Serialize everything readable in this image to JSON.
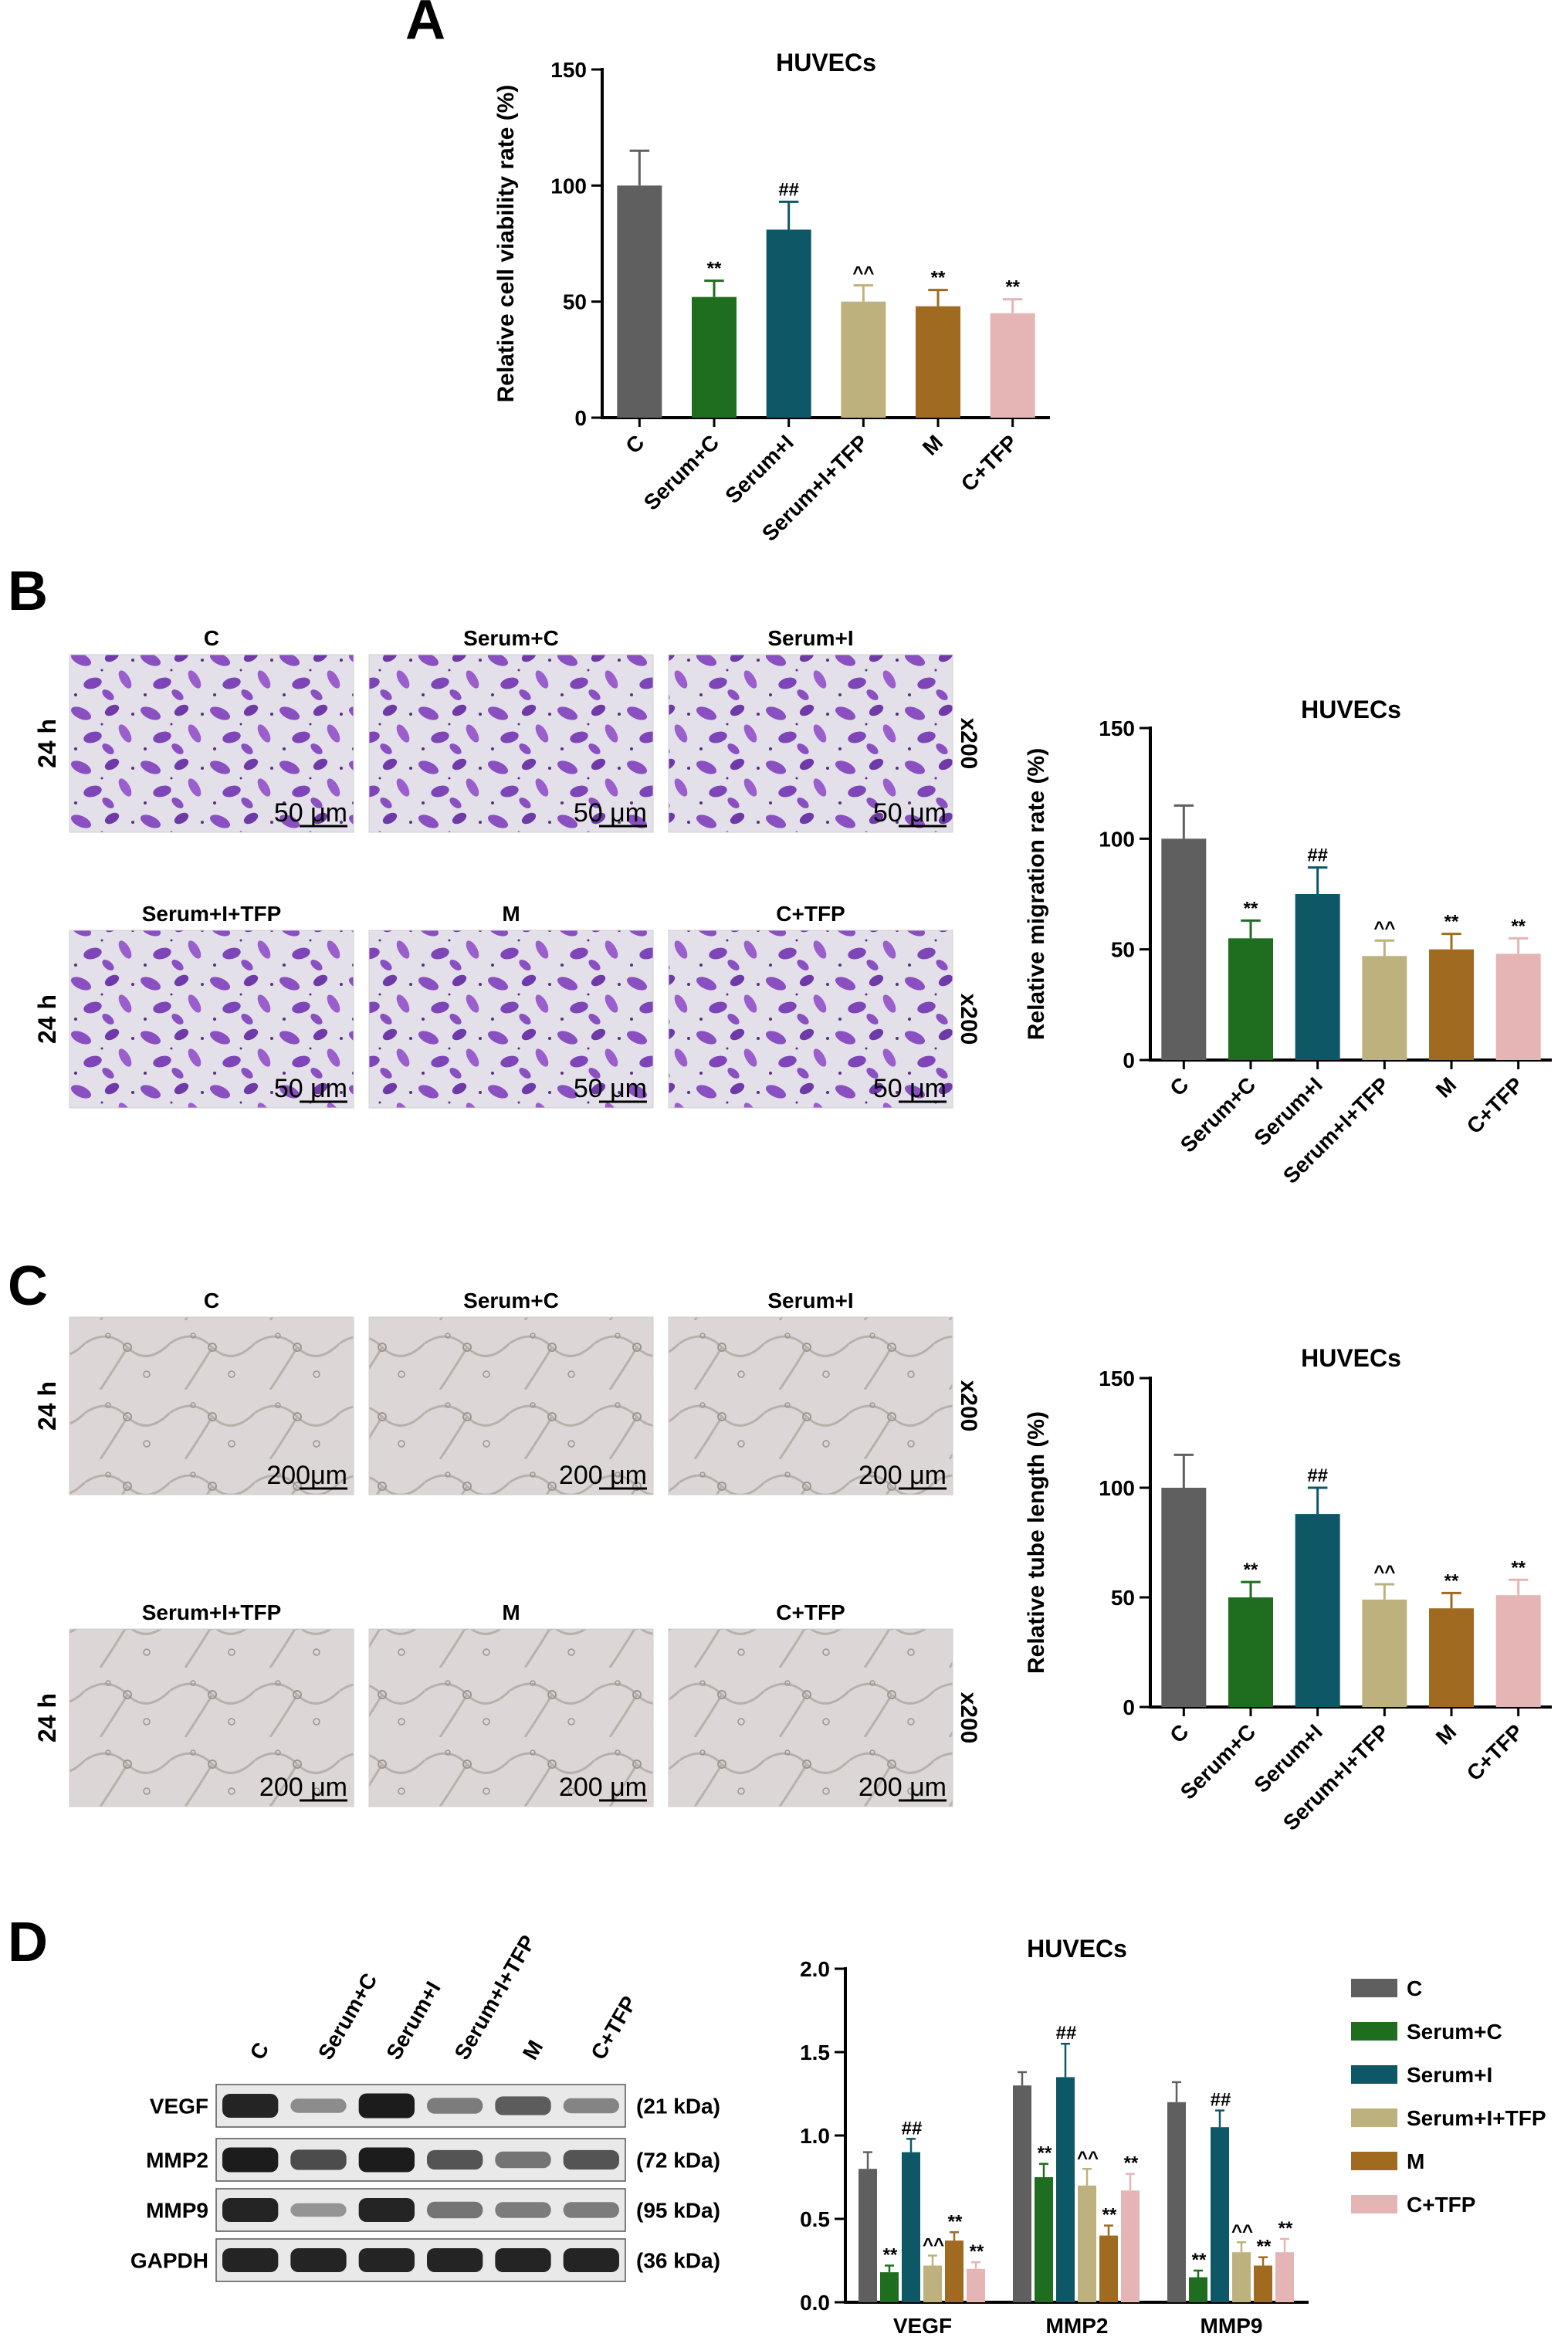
{
  "panels": {
    "A": "A",
    "B": "B",
    "C": "C",
    "D": "D"
  },
  "colors": {
    "C": "#5f5f5f",
    "Serum+C": "#1f6e1f",
    "Serum+I": "#0d5766",
    "Serum+I+TFP": "#bdb27e",
    "M": "#a06a20",
    "C+TFP": "#e5b5b5"
  },
  "micrographs": {
    "B": {
      "row_label": "24 h",
      "magnification": "x200",
      "tiles": [
        {
          "label": "C",
          "scale": "50 μm"
        },
        {
          "label": "Serum+C",
          "scale": "50 μm"
        },
        {
          "label": "Serum+I",
          "scale": "50 μm"
        },
        {
          "label": "Serum+I+TFP",
          "scale": "50 μm"
        },
        {
          "label": "M",
          "scale": "50 μm"
        },
        {
          "label": "C+TFP",
          "scale": "50 μm"
        }
      ]
    },
    "C": {
      "row_label": "24 h",
      "magnification": "x200",
      "tiles": [
        {
          "label": "C",
          "scale": "200μm"
        },
        {
          "label": "Serum+C",
          "scale": "200 μm"
        },
        {
          "label": "Serum+I",
          "scale": "200 μm"
        },
        {
          "label": "Serum+I+TFP",
          "scale": "200 μm"
        },
        {
          "label": "M",
          "scale": "200 μm"
        },
        {
          "label": "C+TFP",
          "scale": "200 μm"
        }
      ]
    }
  },
  "western_blot": {
    "lanes": [
      "C",
      "Serum+C",
      "Serum+I",
      "Serum+I+TFP",
      "M",
      "C+TFP"
    ],
    "bands": [
      {
        "name": "VEGF",
        "size": "(21 kDa)",
        "intensity": [
          0.9,
          0.25,
          0.95,
          0.35,
          0.55,
          0.3
        ]
      },
      {
        "name": "MMP2",
        "size": "(72 kDa)",
        "intensity": [
          0.95,
          0.65,
          0.95,
          0.6,
          0.4,
          0.6
        ]
      },
      {
        "name": "MMP9",
        "size": "(95 kDa)",
        "intensity": [
          0.9,
          0.2,
          0.9,
          0.4,
          0.35,
          0.35
        ]
      },
      {
        "name": "GAPDH",
        "size": "(36 kDa)",
        "intensity": [
          0.9,
          0.9,
          0.9,
          0.9,
          0.9,
          0.9
        ]
      }
    ]
  },
  "chart_data": [
    {
      "id": "A",
      "type": "bar",
      "title": "HUVECs",
      "ylabel": "Relative cell viability rate (%)",
      "ylim": [
        0,
        150
      ],
      "yticks": [
        0,
        50,
        100,
        150
      ],
      "categories": [
        "C",
        "Serum+C",
        "Serum+I",
        "Serum+I+TFP",
        "M",
        "C+TFP"
      ],
      "values": [
        100,
        52,
        81,
        50,
        48,
        45
      ],
      "errors": [
        15,
        7,
        12,
        7,
        7,
        6
      ],
      "annotations": [
        "",
        "**",
        "##",
        "^^",
        "**",
        "**"
      ]
    },
    {
      "id": "B",
      "type": "bar",
      "title": "HUVECs",
      "ylabel": "Relative migration rate (%)",
      "ylim": [
        0,
        150
      ],
      "yticks": [
        0,
        50,
        100,
        150
      ],
      "categories": [
        "C",
        "Serum+C",
        "Serum+I",
        "Serum+I+TFP",
        "M",
        "C+TFP"
      ],
      "values": [
        100,
        55,
        75,
        47,
        50,
        48
      ],
      "errors": [
        15,
        8,
        12,
        7,
        7,
        7
      ],
      "annotations": [
        "",
        "**",
        "##",
        "^^",
        "**",
        "**"
      ]
    },
    {
      "id": "C",
      "type": "bar",
      "title": "HUVECs",
      "ylabel": "Relative tube length (%)",
      "ylim": [
        0,
        150
      ],
      "yticks": [
        0,
        50,
        100,
        150
      ],
      "categories": [
        "C",
        "Serum+C",
        "Serum+I",
        "Serum+I+TFP",
        "M",
        "C+TFP"
      ],
      "values": [
        100,
        50,
        88,
        49,
        45,
        51
      ],
      "errors": [
        15,
        7,
        12,
        7,
        7,
        7
      ],
      "annotations": [
        "",
        "**",
        "##",
        "^^",
        "**",
        "**"
      ]
    },
    {
      "id": "D",
      "type": "bar",
      "title": "HUVECs",
      "ylabel": "",
      "ylim": [
        0,
        2.0
      ],
      "yticks": [
        "0.0",
        "0.5",
        "1.0",
        "1.5",
        "2.0"
      ],
      "categories": [
        "VEGF",
        "MMP2",
        "MMP9"
      ],
      "legend": "right",
      "series": [
        {
          "name": "C",
          "values": [
            0.8,
            1.3,
            1.2
          ],
          "errors": [
            0.1,
            0.08,
            0.12
          ],
          "annotations": [
            "",
            "",
            ""
          ]
        },
        {
          "name": "Serum+C",
          "values": [
            0.18,
            0.75,
            0.15
          ],
          "errors": [
            0.04,
            0.08,
            0.04
          ],
          "annotations": [
            "**",
            "**",
            "**"
          ]
        },
        {
          "name": "Serum+I",
          "values": [
            0.9,
            1.35,
            1.05
          ],
          "errors": [
            0.08,
            0.2,
            0.1
          ],
          "annotations": [
            "##",
            "##",
            "##"
          ]
        },
        {
          "name": "Serum+I+TFP",
          "values": [
            0.22,
            0.7,
            0.3
          ],
          "errors": [
            0.06,
            0.1,
            0.06
          ],
          "annotations": [
            "^^",
            "^^",
            "^^"
          ]
        },
        {
          "name": "M",
          "values": [
            0.37,
            0.4,
            0.22
          ],
          "errors": [
            0.05,
            0.06,
            0.05
          ],
          "annotations": [
            "**",
            "**",
            "**"
          ]
        },
        {
          "name": "C+TFP",
          "values": [
            0.2,
            0.67,
            0.3
          ],
          "errors": [
            0.04,
            0.1,
            0.08
          ],
          "annotations": [
            "**",
            "**",
            "**"
          ]
        }
      ]
    }
  ]
}
